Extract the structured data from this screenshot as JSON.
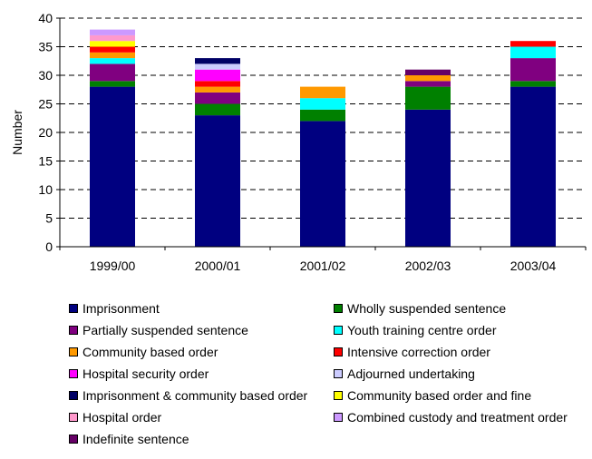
{
  "chart_data": {
    "type": "bar",
    "stacked": true,
    "title": "",
    "xlabel": "",
    "ylabel": "Number",
    "ylim": [
      0,
      40
    ],
    "yticks": [
      0,
      5,
      10,
      15,
      20,
      25,
      30,
      35,
      40
    ],
    "grid": "dashed horizontal",
    "legend_position": "bottom",
    "categories": [
      "1999/00",
      "2000/01",
      "2001/02",
      "2002/03",
      "2003/04"
    ],
    "series": [
      {
        "name": "Imprisonment",
        "color": "#000080",
        "values": [
          28,
          23,
          22,
          24,
          28
        ]
      },
      {
        "name": "Wholly suspended sentence",
        "color": "#008000",
        "values": [
          1,
          2,
          2,
          4,
          1
        ]
      },
      {
        "name": "Partially suspended sentence",
        "color": "#800080",
        "values": [
          3,
          2,
          0,
          1,
          4
        ]
      },
      {
        "name": "Youth training centre order",
        "color": "#00ffff",
        "values": [
          1,
          0,
          2,
          0,
          2
        ]
      },
      {
        "name": "Community based order",
        "color": "#ff9900",
        "values": [
          1,
          1,
          2,
          1,
          0
        ]
      },
      {
        "name": "Intensive correction order",
        "color": "#ff0000",
        "values": [
          1,
          1,
          0,
          0,
          1
        ]
      },
      {
        "name": "Hospital security order",
        "color": "#ff00ff",
        "values": [
          0,
          2,
          0,
          0,
          0
        ]
      },
      {
        "name": "Adjourned undertaking",
        "color": "#ccccff",
        "values": [
          0,
          1,
          0,
          0,
          0
        ]
      },
      {
        "name": "Imprisonment & community based order",
        "color": "#000066",
        "values": [
          0,
          1,
          0,
          0,
          0
        ]
      },
      {
        "name": "Community based order and fine",
        "color": "#ffff00",
        "values": [
          1,
          0,
          0,
          0,
          0
        ]
      },
      {
        "name": "Hospital order",
        "color": "#ff99cc",
        "values": [
          1,
          0,
          0,
          0,
          0
        ]
      },
      {
        "name": "Combined custody and treatment order",
        "color": "#cc99ff",
        "values": [
          1,
          0,
          0,
          0,
          0
        ]
      },
      {
        "name": "Indefinite sentence",
        "color": "#660066",
        "values": [
          0,
          0,
          0,
          1,
          0
        ]
      }
    ]
  }
}
